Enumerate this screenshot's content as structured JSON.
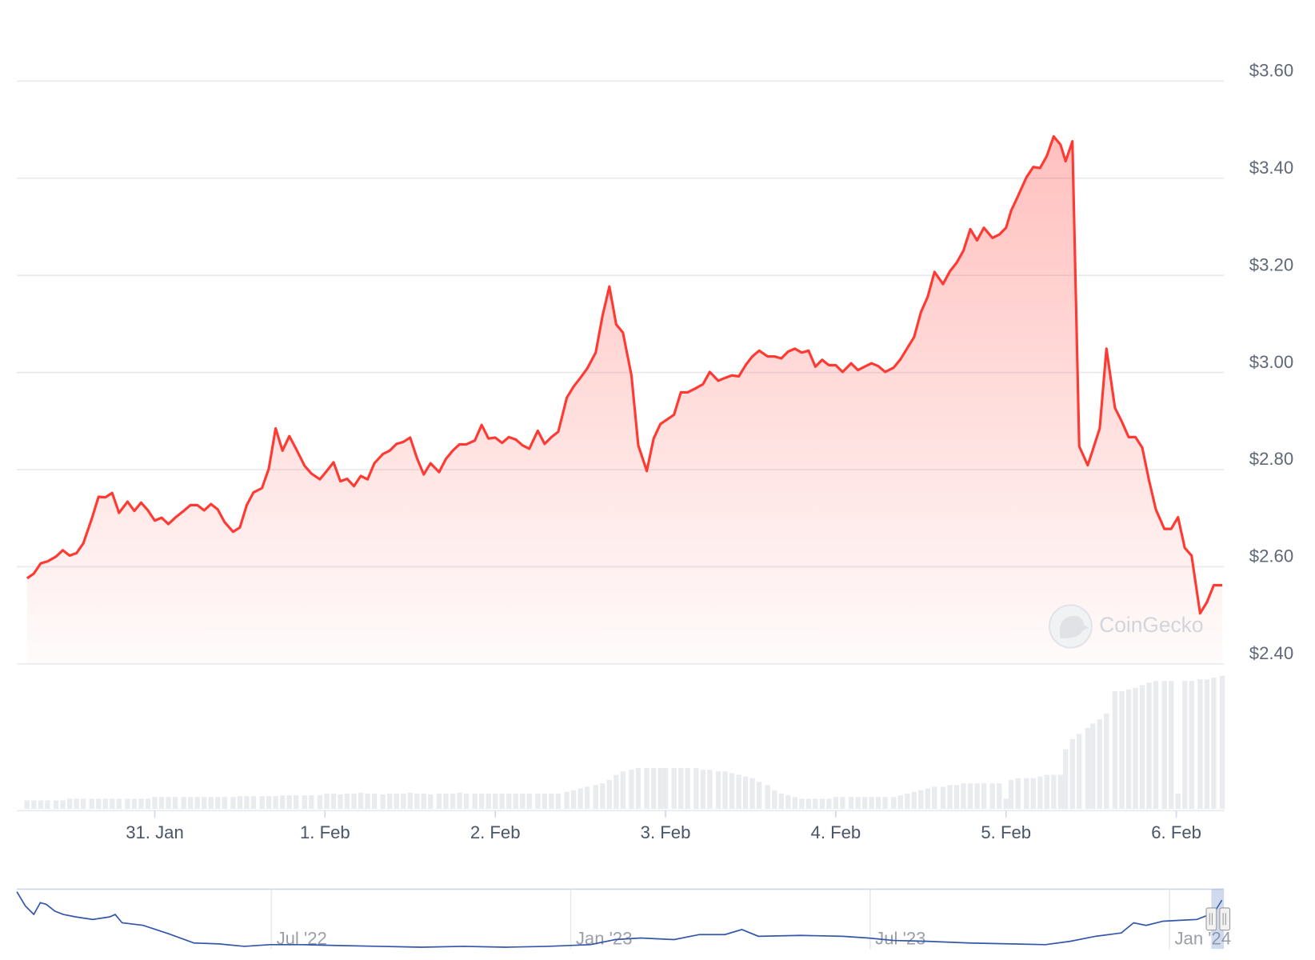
{
  "chart_data": [
    {
      "type": "area",
      "x": [
        30.25,
        30.29,
        30.33,
        30.37,
        30.42,
        30.46,
        30.5,
        30.54,
        30.58,
        30.63,
        30.67,
        30.71,
        30.75,
        30.79,
        30.84,
        30.88,
        30.92,
        30.96,
        31.0,
        31.04,
        31.08,
        31.12,
        31.17,
        31.21,
        31.25,
        31.29,
        31.33,
        31.37,
        31.41,
        31.46,
        31.5,
        31.54,
        31.58,
        31.63,
        31.67,
        31.71,
        31.75,
        31.79,
        31.83,
        31.88,
        31.92,
        31.97,
        32.01,
        32.05,
        32.09,
        32.13,
        32.17,
        32.21,
        32.25,
        32.29,
        32.34,
        32.38,
        32.42,
        32.46,
        32.5,
        32.54,
        32.58,
        32.62,
        32.67,
        32.71,
        32.75,
        32.79,
        32.83,
        32.88,
        32.92,
        32.96,
        33.0,
        33.04,
        33.08,
        33.12,
        33.16,
        33.2,
        33.25,
        33.29,
        33.33,
        33.37,
        33.42,
        33.46,
        33.5,
        33.54,
        33.59,
        33.63,
        33.67,
        33.71,
        33.75,
        33.8,
        33.84,
        33.89,
        33.93,
        33.97,
        34.0,
        34.05,
        34.09,
        34.13,
        34.18,
        34.22,
        34.26,
        34.31,
        34.35,
        34.39,
        34.43,
        34.47,
        34.51,
        34.55,
        34.6,
        34.64,
        34.68,
        34.72,
        34.76,
        34.8,
        34.84,
        34.88,
        34.92,
        34.96,
        35.0,
        35.04,
        35.09,
        35.13,
        35.17,
        35.21,
        35.25,
        35.29,
        35.34,
        35.38,
        35.42,
        35.46,
        35.5,
        35.54,
        35.58,
        35.63,
        35.67,
        35.71,
        35.75,
        35.79,
        35.83,
        35.87,
        35.92,
        35.96,
        36.0,
        36.03,
        36.07,
        36.12,
        36.16,
        36.2,
        36.24,
        36.28,
        36.32,
        36.35,
        36.39,
        36.43,
        36.48,
        36.51,
        36.55,
        36.59,
        36.64,
        36.68,
        36.72,
        36.76,
        36.8,
        36.84,
        36.88,
        36.93,
        36.97,
        37.01,
        37.05,
        37.09,
        37.14,
        37.18,
        37.22,
        37.27
      ],
      "values": [
        2.576,
        2.586,
        2.607,
        2.611,
        2.621,
        2.634,
        2.623,
        2.628,
        2.648,
        2.699,
        2.744,
        2.743,
        2.752,
        2.711,
        2.734,
        2.715,
        2.732,
        2.716,
        2.695,
        2.701,
        2.688,
        2.701,
        2.715,
        2.727,
        2.727,
        2.716,
        2.729,
        2.718,
        2.692,
        2.672,
        2.681,
        2.727,
        2.753,
        2.762,
        2.802,
        2.885,
        2.839,
        2.869,
        2.843,
        2.808,
        2.792,
        2.78,
        2.797,
        2.815,
        2.776,
        2.781,
        2.766,
        2.787,
        2.78,
        2.813,
        2.832,
        2.839,
        2.853,
        2.857,
        2.866,
        2.824,
        2.79,
        2.813,
        2.795,
        2.822,
        2.839,
        2.852,
        2.852,
        2.86,
        2.892,
        2.864,
        2.866,
        2.855,
        2.867,
        2.862,
        2.85,
        2.843,
        2.88,
        2.853,
        2.867,
        2.878,
        2.948,
        2.971,
        2.989,
        3.008,
        3.041,
        3.117,
        3.177,
        3.099,
        3.082,
        2.994,
        2.85,
        2.797,
        2.864,
        2.894,
        2.901,
        2.913,
        2.959,
        2.959,
        2.968,
        2.976,
        3.001,
        2.983,
        2.989,
        2.994,
        2.992,
        3.015,
        3.033,
        3.045,
        3.033,
        3.033,
        3.029,
        3.043,
        3.049,
        3.041,
        3.045,
        3.012,
        3.026,
        3.015,
        3.015,
        3.001,
        3.019,
        3.005,
        3.012,
        3.019,
        3.013,
        3.001,
        3.01,
        3.027,
        3.05,
        3.073,
        3.124,
        3.156,
        3.207,
        3.182,
        3.208,
        3.226,
        3.251,
        3.295,
        3.272,
        3.298,
        3.277,
        3.284,
        3.298,
        3.333,
        3.363,
        3.402,
        3.423,
        3.421,
        3.446,
        3.486,
        3.469,
        3.435,
        3.476,
        2.848,
        2.809,
        2.841,
        2.885,
        3.049,
        2.927,
        2.899,
        2.867,
        2.867,
        2.845,
        2.778,
        2.718,
        2.678,
        2.678,
        2.702,
        2.639,
        2.623,
        2.504,
        2.527,
        2.562,
        2.562
      ],
      "color": "#ff3a33",
      "volume": [
        10,
        10,
        10,
        10,
        10,
        10,
        12,
        12,
        12,
        12,
        12,
        12,
        12,
        12,
        12,
        12,
        12,
        12,
        14,
        14,
        14,
        14,
        14,
        14,
        14,
        14,
        14,
        14,
        14,
        14,
        15,
        15,
        15,
        15,
        15,
        15,
        16,
        16,
        16,
        16,
        16,
        16,
        18,
        18,
        17,
        18,
        18,
        19,
        18,
        18,
        17,
        18,
        18,
        18,
        19,
        18,
        18,
        17,
        18,
        18,
        18,
        19,
        18,
        18,
        18,
        18,
        18,
        18,
        18,
        18,
        18,
        18,
        18,
        18,
        18,
        18,
        20,
        22,
        24,
        26,
        28,
        30,
        34,
        40,
        44,
        46,
        48,
        48,
        48,
        48,
        48,
        48,
        48,
        48,
        48,
        46,
        46,
        44,
        44,
        42,
        40,
        38,
        36,
        32,
        28,
        22,
        18,
        16,
        14,
        12,
        12,
        12,
        12,
        12,
        14,
        14,
        14,
        14,
        14,
        14,
        14,
        14,
        14,
        16,
        18,
        20,
        22,
        24,
        26,
        26,
        28,
        28,
        30,
        30,
        30,
        30,
        30,
        30,
        12,
        34,
        36,
        36,
        36,
        38,
        40,
        40,
        40,
        70,
        82,
        88,
        95,
        100,
        105,
        112,
        138,
        138,
        140,
        142,
        145,
        148,
        150,
        150,
        150,
        18,
        150,
        150,
        152,
        152,
        154,
        156
      ],
      "volume_color": "#e9ebee",
      "xlim": [
        30.19,
        37.28
      ],
      "ylim": [
        2.4,
        3.6
      ],
      "xticks": [
        {
          "value": 31,
          "label": "31. Jan"
        },
        {
          "value": 32,
          "label": "1. Feb"
        },
        {
          "value": 33,
          "label": "2. Feb"
        },
        {
          "value": 34,
          "label": "3. Feb"
        },
        {
          "value": 35,
          "label": "4. Feb"
        },
        {
          "value": 36,
          "label": "5. Feb"
        },
        {
          "value": 37,
          "label": "6. Feb"
        }
      ],
      "yticks": [
        {
          "value": 2.4,
          "label": "$2.40"
        },
        {
          "value": 2.6,
          "label": "$2.60"
        },
        {
          "value": 2.8,
          "label": "$2.80"
        },
        {
          "value": 3.0,
          "label": "$3.00"
        },
        {
          "value": 3.2,
          "label": "$3.20"
        },
        {
          "value": 3.4,
          "label": "$3.40"
        },
        {
          "value": 3.6,
          "label": "$3.60"
        }
      ],
      "grid": true,
      "watermark": "CoinGecko"
    },
    {
      "type": "line",
      "x": [
        1.9,
        2.07,
        2.24,
        2.37,
        2.49,
        2.66,
        2.83,
        3.08,
        3.42,
        3.76,
        3.87,
        4.01,
        4.43,
        4.94,
        5.45,
        5.95,
        6.46,
        6.97,
        7.64,
        8.32,
        9.16,
        10.01,
        10.85,
        11.7,
        12.54,
        13.39,
        13.89,
        14.4,
        15.07,
        15.58,
        16.09,
        16.43,
        16.76,
        17.61,
        18.45,
        18.96,
        19.47,
        20.14,
        20.99,
        21.83,
        22.51,
        23.01,
        23.52,
        24.03,
        24.28,
        24.53,
        24.87,
        25.21,
        25.55,
        25.89,
        26.05
      ],
      "values": [
        67,
        50,
        40,
        54,
        52,
        44,
        40,
        37,
        34,
        37,
        40,
        30,
        27,
        17,
        6,
        5,
        2,
        4,
        4,
        3,
        2,
        1,
        2,
        1,
        2,
        4,
        10,
        12,
        10,
        16,
        16,
        22,
        14,
        15,
        14,
        12,
        9,
        8,
        6,
        5,
        4,
        8,
        14,
        18,
        30,
        27,
        32,
        33,
        34,
        42,
        57
      ],
      "color": "#3355aa",
      "xlim": [
        1.9,
        26.09
      ],
      "xticks": [
        {
          "value": 7,
          "label": "Jul '22"
        },
        {
          "value": 13,
          "label": "Jan '23"
        },
        {
          "value": 19,
          "label": "Jul '23"
        },
        {
          "value": 25,
          "label": "Jan '24"
        }
      ]
    }
  ]
}
